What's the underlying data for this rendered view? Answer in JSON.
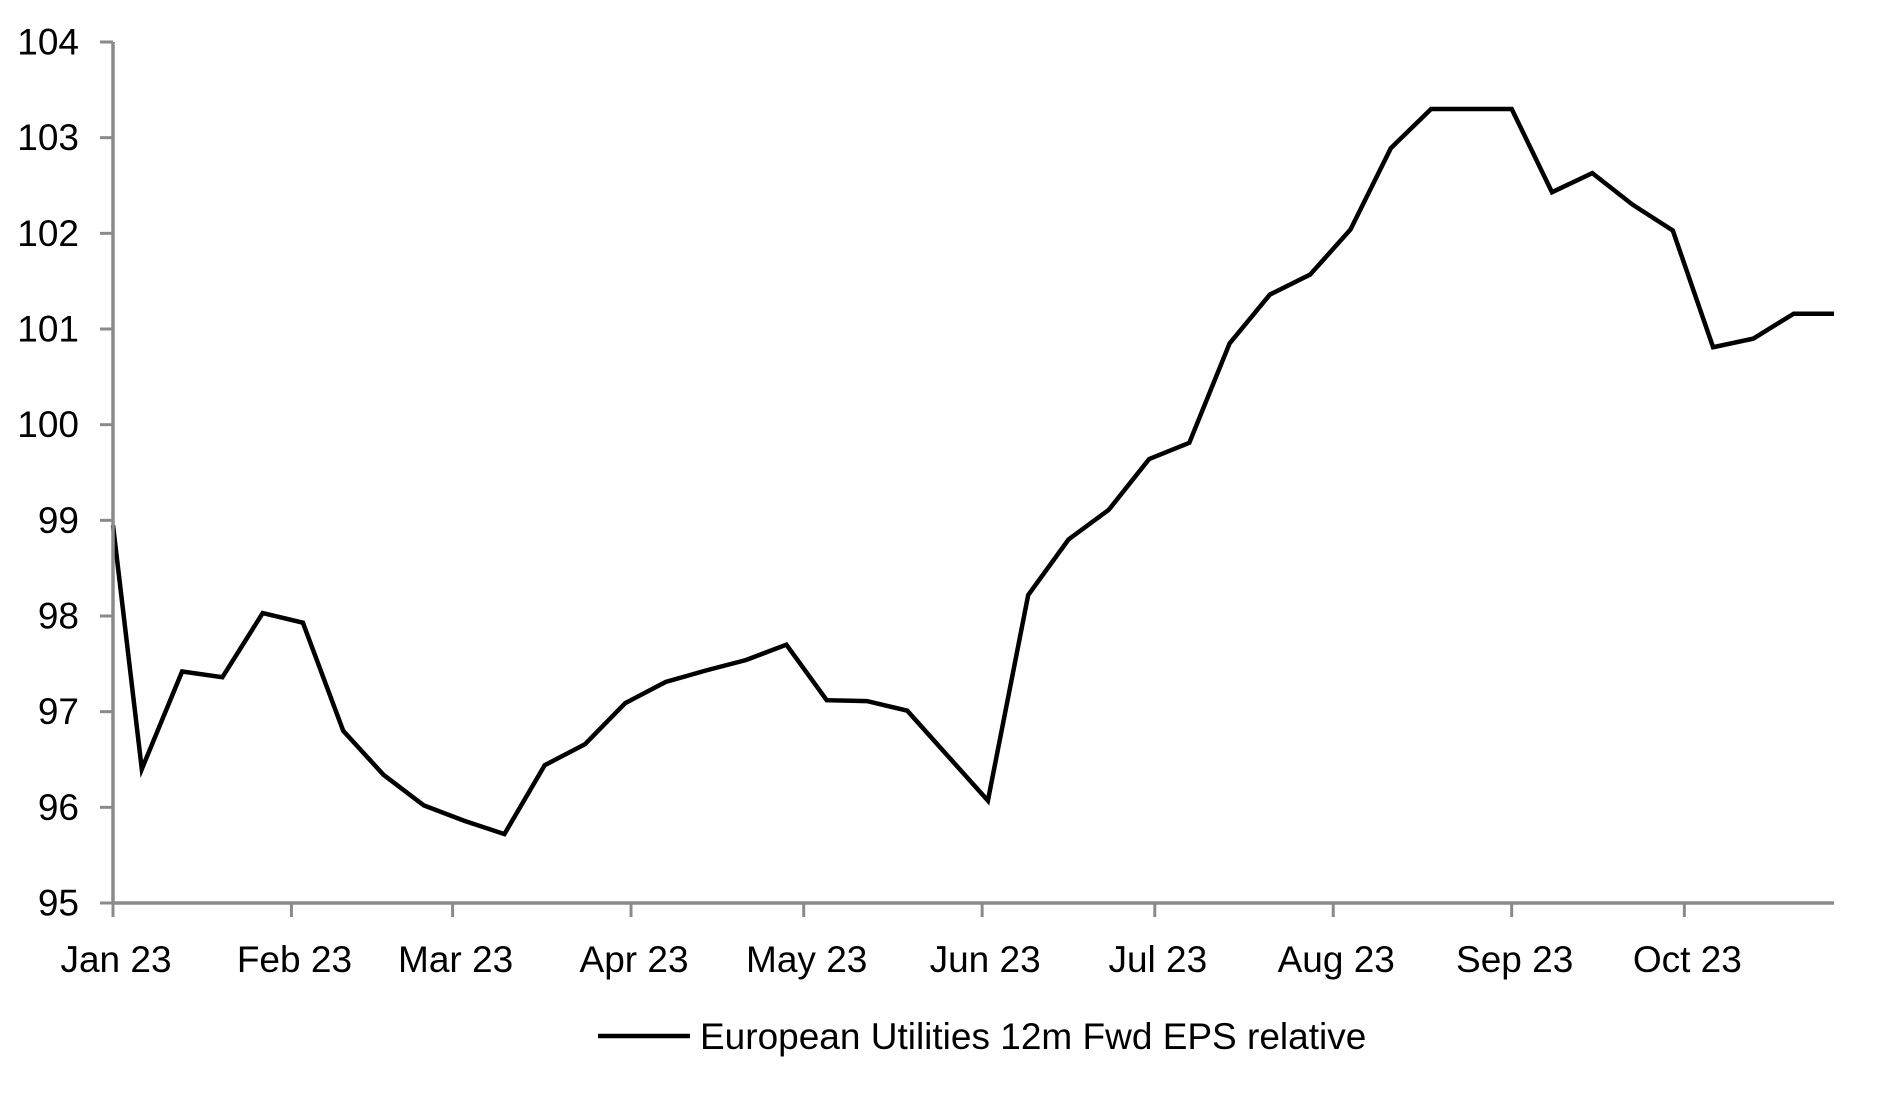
{
  "chart_data": {
    "type": "line",
    "title": "",
    "legend": {
      "label": "European Utilities 12m Fwd EPS relative",
      "position": "bottom-center",
      "swatch": "black-line"
    },
    "line_color": "#000000",
    "axis_color": "#8a8a8a",
    "text_color": "#000000",
    "background_color": "#ffffff",
    "grid": "off",
    "y_axis": {
      "min": 95,
      "max": 104,
      "ticks": [
        95,
        96,
        97,
        98,
        99,
        100,
        101,
        102,
        103,
        104
      ]
    },
    "x_axis": {
      "start_date": "2023-01-01",
      "end_date": "2023-10-27",
      "ticks": [
        {
          "label": "Jan 23",
          "date": "2023-01-01"
        },
        {
          "label": "Feb 23",
          "date": "2023-02-01"
        },
        {
          "label": "Mar 23",
          "date": "2023-03-01"
        },
        {
          "label": "Apr 23",
          "date": "2023-04-01"
        },
        {
          "label": "May 23",
          "date": "2023-05-01"
        },
        {
          "label": "Jun 23",
          "date": "2023-06-01"
        },
        {
          "label": "Jul 23",
          "date": "2023-07-01"
        },
        {
          "label": "Aug 23",
          "date": "2023-08-01"
        },
        {
          "label": "Sep 23",
          "date": "2023-09-01"
        },
        {
          "label": "Oct 23",
          "date": "2023-10-01"
        }
      ]
    },
    "series": [
      {
        "name": "European Utilities 12m Fwd EPS relative",
        "color": "#000000",
        "points": [
          {
            "date": "2023-01-01",
            "value": 98.95
          },
          {
            "date": "2023-01-06",
            "value": 96.4
          },
          {
            "date": "2023-01-13",
            "value": 97.42
          },
          {
            "date": "2023-01-20",
            "value": 97.36
          },
          {
            "date": "2023-01-27",
            "value": 98.03
          },
          {
            "date": "2023-02-03",
            "value": 97.93
          },
          {
            "date": "2023-02-10",
            "value": 96.8
          },
          {
            "date": "2023-02-17",
            "value": 96.34
          },
          {
            "date": "2023-02-24",
            "value": 96.02
          },
          {
            "date": "2023-03-03",
            "value": 95.86
          },
          {
            "date": "2023-03-10",
            "value": 95.72
          },
          {
            "date": "2023-03-17",
            "value": 96.44
          },
          {
            "date": "2023-03-24",
            "value": 96.66
          },
          {
            "date": "2023-03-31",
            "value": 97.09
          },
          {
            "date": "2023-04-07",
            "value": 97.31
          },
          {
            "date": "2023-04-14",
            "value": 97.43
          },
          {
            "date": "2023-04-21",
            "value": 97.54
          },
          {
            "date": "2023-04-28",
            "value": 97.7
          },
          {
            "date": "2023-05-05",
            "value": 97.12
          },
          {
            "date": "2023-05-12",
            "value": 97.11
          },
          {
            "date": "2023-05-19",
            "value": 97.01
          },
          {
            "date": "2023-05-26",
            "value": 96.54
          },
          {
            "date": "2023-06-02",
            "value": 96.07
          },
          {
            "date": "2023-06-09",
            "value": 98.22
          },
          {
            "date": "2023-06-16",
            "value": 98.8
          },
          {
            "date": "2023-06-23",
            "value": 99.11
          },
          {
            "date": "2023-06-30",
            "value": 99.64
          },
          {
            "date": "2023-07-07",
            "value": 99.81
          },
          {
            "date": "2023-07-14",
            "value": 100.85
          },
          {
            "date": "2023-07-21",
            "value": 101.36
          },
          {
            "date": "2023-07-28",
            "value": 101.57
          },
          {
            "date": "2023-08-04",
            "value": 102.04
          },
          {
            "date": "2023-08-11",
            "value": 102.89
          },
          {
            "date": "2023-08-18",
            "value": 103.3
          },
          {
            "date": "2023-08-25",
            "value": 103.3
          },
          {
            "date": "2023-09-01",
            "value": 103.3
          },
          {
            "date": "2023-09-08",
            "value": 102.43
          },
          {
            "date": "2023-09-15",
            "value": 102.63
          },
          {
            "date": "2023-09-22",
            "value": 102.3
          },
          {
            "date": "2023-09-29",
            "value": 102.03
          },
          {
            "date": "2023-10-06",
            "value": 100.81
          },
          {
            "date": "2023-10-13",
            "value": 100.9
          },
          {
            "date": "2023-10-20",
            "value": 101.16
          },
          {
            "date": "2023-10-27",
            "value": 101.16
          }
        ]
      }
    ]
  }
}
